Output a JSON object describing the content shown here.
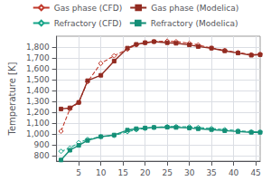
{
  "chart_data": {
    "type": "line",
    "y_label": "Temperature [K]",
    "x": [
      1,
      3,
      5,
      7,
      10,
      13,
      16,
      18,
      20,
      22,
      25,
      27,
      30,
      32,
      35,
      38,
      41,
      44,
      46
    ],
    "series": [
      {
        "name": "Gas phase (CFD)",
        "color": "#c0392b",
        "marker": "open_diamond",
        "line_style": "dashed",
        "values": [
          1025,
          1230,
          1290,
          1480,
          1650,
          1720,
          1780,
          1820,
          1840,
          1850,
          1855,
          1850,
          1835,
          1820,
          1790,
          1770,
          1750,
          1730,
          1735
        ]
      },
      {
        "name": "Gas phase (Modelica)",
        "color": "#922b21",
        "marker": "square",
        "line_style": "solid",
        "values": [
          1230,
          1240,
          1290,
          1490,
          1540,
          1670,
          1790,
          1825,
          1840,
          1850,
          1840,
          1835,
          1820,
          1805,
          1790,
          1765,
          1745,
          1725,
          1730
        ]
      },
      {
        "name": "Refractory (CFD)",
        "color": "#17a589",
        "marker": "open_diamond",
        "line_style": "dashed",
        "values": [
          840,
          870,
          920,
          950,
          975,
          985,
          1020,
          1038,
          1050,
          1060,
          1068,
          1068,
          1065,
          1060,
          1050,
          1040,
          1030,
          1020,
          1018
        ]
      },
      {
        "name": "Refractory (Modelica)",
        "color": "#148f77",
        "marker": "square",
        "line_style": "solid",
        "values": [
          760,
          850,
          895,
          940,
          975,
          990,
          1035,
          1048,
          1055,
          1060,
          1062,
          1060,
          1055,
          1048,
          1040,
          1030,
          1022,
          1015,
          1015
        ]
      }
    ],
    "xlim": [
      0,
      46
    ],
    "ylim": [
      750,
      1900
    ],
    "xticks": [
      5,
      10,
      15,
      20,
      25,
      30,
      35,
      40,
      45
    ],
    "yticks": [
      800,
      900,
      1000,
      1100,
      1200,
      1300,
      1400,
      1500,
      1600,
      1700,
      1800
    ],
    "grid": true,
    "legend": "top"
  }
}
